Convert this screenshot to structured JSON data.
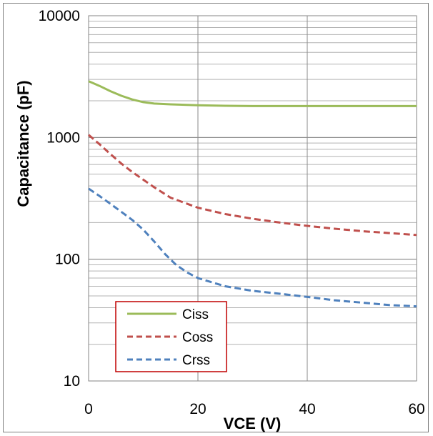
{
  "chart_data": {
    "type": "line",
    "xlabel": "VCE  (V)",
    "ylabel": "Capacitance  (pF)",
    "xlim": [
      0,
      60
    ],
    "ylim": [
      10,
      10000
    ],
    "y_scale": "log",
    "x_ticks": [
      0,
      20,
      40,
      60
    ],
    "x_tick_labels": [
      "0",
      "20",
      "40",
      "60"
    ],
    "y_ticks": [
      10,
      100,
      1000,
      10000
    ],
    "y_tick_labels": [
      "10",
      "100",
      "1000",
      "10000"
    ],
    "grid": true,
    "legend_position": "bottom-left",
    "series": [
      {
        "name": "Ciss",
        "color": "#9bbb59",
        "dash": "solid",
        "x": [
          0,
          2,
          4,
          6,
          8,
          10,
          12,
          15,
          20,
          25,
          30,
          40,
          50,
          60
        ],
        "y": [
          2900,
          2650,
          2400,
          2200,
          2050,
          1950,
          1900,
          1870,
          1840,
          1820,
          1810,
          1810,
          1810,
          1810
        ]
      },
      {
        "name": "Coss",
        "color": "#c0504d",
        "dash": "dashed",
        "x": [
          0,
          2,
          4,
          6,
          8,
          10,
          12,
          15,
          20,
          25,
          30,
          35,
          40,
          45,
          50,
          55,
          60
        ],
        "y": [
          1050,
          880,
          730,
          610,
          520,
          450,
          390,
          320,
          265,
          235,
          215,
          200,
          188,
          178,
          170,
          164,
          158
        ]
      },
      {
        "name": "Crss",
        "color": "#4f81bd",
        "dash": "dashed",
        "x": [
          0,
          2,
          4,
          6,
          8,
          10,
          12,
          14,
          16,
          18,
          20,
          25,
          30,
          35,
          40,
          45,
          50,
          55,
          60
        ],
        "y": [
          380,
          330,
          285,
          245,
          210,
          175,
          140,
          110,
          90,
          78,
          70,
          60,
          55,
          52,
          49,
          46,
          44,
          42,
          41
        ]
      }
    ]
  }
}
